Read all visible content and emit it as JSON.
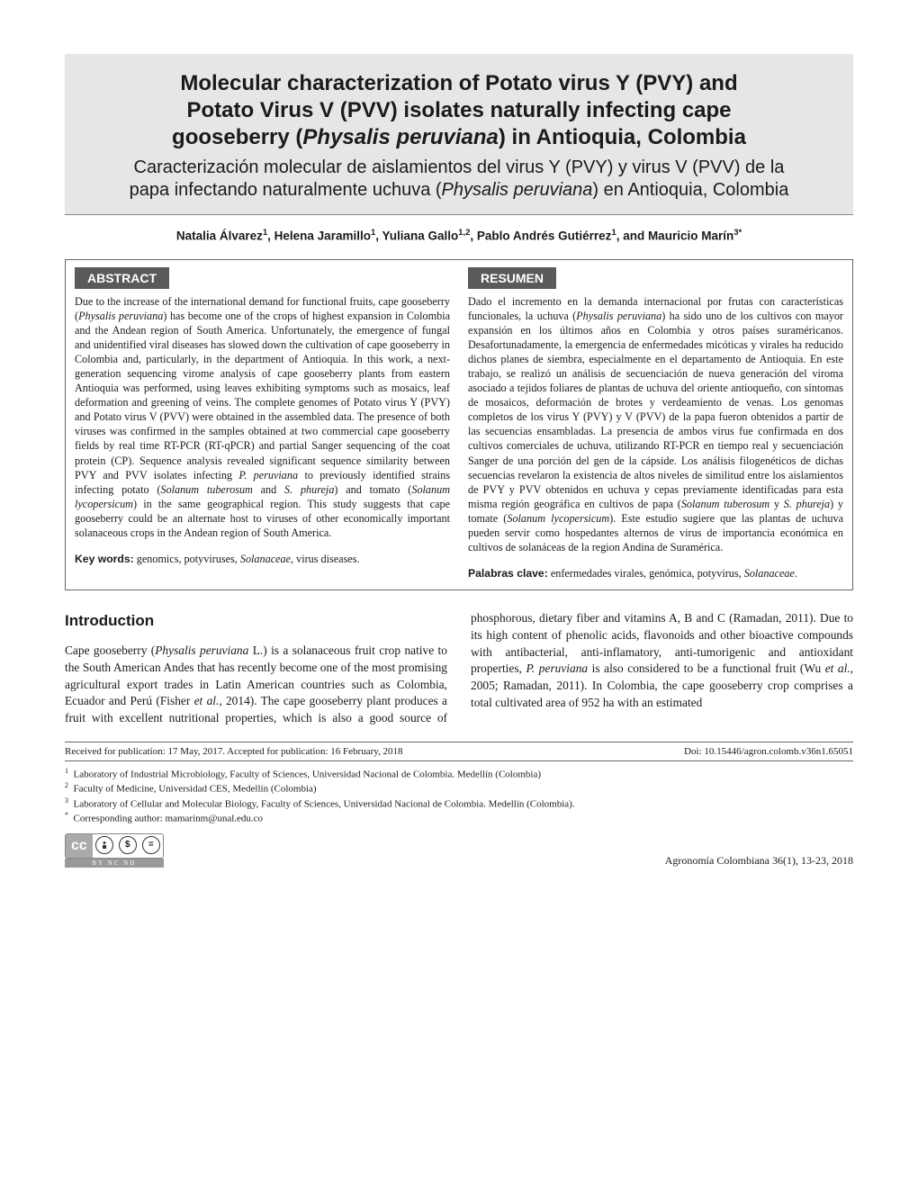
{
  "title_block": {
    "title_line1": "Molecular characterization of Potato virus Y (PVY) and",
    "title_line2": "Potato Virus V (PVV) isolates naturally infecting cape",
    "title_line3_prefix": "gooseberry (",
    "title_line3_italic": "Physalis peruviana",
    "title_line3_suffix": ") in Antioquia, Colombia",
    "subtitle_line1": "Caracterización molecular de aislamientos del virus Y (PVY) y virus V (PVV) de la",
    "subtitle_line2_prefix": "papa infectando naturalmente uchuva (",
    "subtitle_line2_italic": "Physalis peruviana",
    "subtitle_line2_suffix": ") en Antioquia, Colombia",
    "background_color": "#e6e6e6"
  },
  "authors_html": "Natalia Álvarez<sup>1</sup>, Helena Jaramillo<sup>1</sup>, Yuliana Gallo<sup>1,2</sup>, Pablo Andrés Gutiérrez<sup>1</sup>, and Mauricio Marín<sup>3*</sup>",
  "abstract": {
    "heading_en": "ABSTRACT",
    "heading_es": "RESUMEN",
    "heading_bg": "#5a5a5a",
    "heading_color": "#ffffff",
    "body_en_html": "Due to the increase of the international demand for functional fruits, cape gooseberry (<em>Physalis peruviana</em>) has become one of the crops of highest expansion in Colombia and the Andean region of South America. Unfortunately, the emergence of fungal and unidentified viral diseases has slowed down the cultivation of cape gooseberry in Colombia and, particularly, in the department of Antioquia. In this work, a next-generation sequencing virome analysis of cape gooseberry plants from eastern Antioquia was performed, using leaves exhibiting symptoms such as mosaics, leaf deformation and greening of veins. The complete genomes of Potato virus Y (PVY) and Potato virus V (PVV) were obtained in the assembled data. The presence of both viruses was confirmed in the samples obtained at two commercial cape gooseberry fields by real time RT-PCR (RT-qPCR) and partial Sanger sequencing of the coat protein (CP). Sequence analysis revealed significant sequence similarity between PVY and PVV isolates infecting <em>P. peruviana</em> to previously identified strains infecting potato (<em>Solanum tuberosum</em> and <em>S. phureja</em>) and tomato (<em>Solanum lycopersicum</em>) in the same geographical region. This study suggests that cape gooseberry could be an alternate host to viruses of other economically important solanaceous crops in the Andean region of South America.",
    "body_es_html": "Dado el incremento en la demanda internacional por frutas con características funcionales, la uchuva (<em>Physalis peruviana</em>) ha sido uno de los cultivos con mayor expansión en los últimos años en Colombia y otros países suraméricanos. Desafortunadamente, la emergencia de enfermedades micóticas y virales ha reducido dichos planes de siembra, especialmente en el departamento de Antioquia. En este trabajo, se realizó un análisis de secuenciación de nueva generación del viroma asociado a tejidos foliares de plantas de uchuva del oriente antioqueño, con síntomas de mosaicos, deformación de brotes y verdeamiento de venas. Los genomas completos de los virus Y (PVY) y V (PVV) de la papa fueron obtenidos a partir de las secuencias ensambladas. La presencia de ambos virus fue confirmada en dos cultivos comerciales de uchuva, utilizando RT-PCR en tiempo real y secuenciación Sanger de una porción del gen de la cápside. Los análisis filogenéticos de dichas secuencias revelaron la existencia de altos niveles de similitud entre los aislamientos de PVY y PVV obtenidos en uchuva y cepas previamente identificadas para esta misma región geográfica en cultivos de papa (<em>Solanum tuberosum</em> y <em>S. phureja</em>) y tomate (<em>Solanum lycopersicum</em>). Este estudio sugiere que las plantas de uchuva pueden servir como hospedantes alternos de virus de importancia económica en cultivos de solanáceas de la region Andina de Suramérica.",
    "keywords_label_en": "Key words:",
    "keywords_en_html": " genomics, potyviruses, <em>Solanaceae</em>, virus diseases.",
    "keywords_label_es": "Palabras clave:",
    "keywords_es_html": " enfermedades virales, genómica, potyvirus, <em>Solanaceae</em>."
  },
  "introduction": {
    "heading": "Introduction",
    "body_html": "Cape gooseberry (<em>Physalis peruviana</em> L.) is a solanaceous fruit crop native to the South American Andes that has recently become one of the most promising agricultural export trades in Latin American countries such as Colombia, Ecuador and Perú (Fisher <em>et al.,</em> 2014). The cape gooseberry plant produces a fruit with excellent nutritional properties, which is also a good source of phosphorous, dietary fiber and vitamins A, B and C (Ramadan, 2011). Due to its high content of phenolic acids, flavonoids and other bioactive compounds with antibacterial, anti-inflamatory, anti-tumorigenic and antioxidant properties, <em>P. peruviana</em> is also considered to be a functional fruit (Wu <em>et al.,</em> 2005; Ramadan, 2011). In Colombia, the cape gooseberry crop comprises a total cultivated area of 952 ha with an estimated"
  },
  "footer": {
    "received": "Received for publication: 17 May, 2017. Accepted for publication: 16 February, 2018",
    "doi": "Doi: 10.15446/agron.colomb.v36n1.65051",
    "affiliations": [
      {
        "sup": "1",
        "text": "Laboratory of Industrial Microbiology, Faculty of Sciences, Universidad Nacional de Colombia. Medellín (Colombia)"
      },
      {
        "sup": "2",
        "text": "Faculty of Medicine, Universidad CES, Medellín (Colombia)"
      },
      {
        "sup": "3",
        "text": "Laboratory of Cellular and Molecular Biology, Faculty of Sciences, Universidad Nacional de Colombia. Medellín (Colombia)."
      },
      {
        "sup": "*",
        "text": "Corresponding author: mamarinm@unal.edu.co"
      }
    ],
    "journal_ref": "Agronomía Colombiana 36(1), 13-23, 2018",
    "cc_text": "cc",
    "cc_license": "BY   NC   ND"
  }
}
